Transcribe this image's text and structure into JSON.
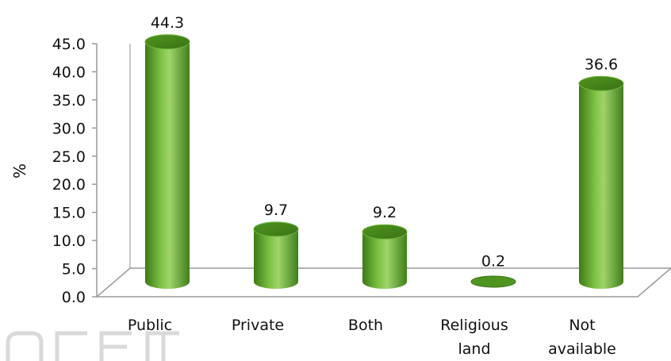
{
  "chart_data": {
    "type": "bar",
    "categories": [
      [
        "Public"
      ],
      [
        "Private"
      ],
      [
        "Both"
      ],
      [
        "Religious",
        "land"
      ],
      [
        "Not",
        "available"
      ]
    ],
    "values": [
      44.3,
      9.7,
      9.2,
      0.2,
      36.6
    ],
    "data_labels": [
      "44.3",
      "9.7",
      "9.2",
      "0.2",
      "36.6"
    ],
    "ylabel": "%",
    "ylim": [
      0,
      45
    ],
    "yticks": [
      "0.0",
      "5.0",
      "10.0",
      "15.0",
      "20.0",
      "25.0",
      "30.0",
      "35.0",
      "40.0",
      "45.0"
    ],
    "style": "3d-cylinder",
    "bar_color": "#5aa22a",
    "grid": false,
    "legend": "none"
  },
  "colors": {
    "bar": "#5aa22a",
    "bar_dark": "#3c7a18",
    "bar_light": "#9fd46a",
    "axis": "#9a9a9a"
  }
}
